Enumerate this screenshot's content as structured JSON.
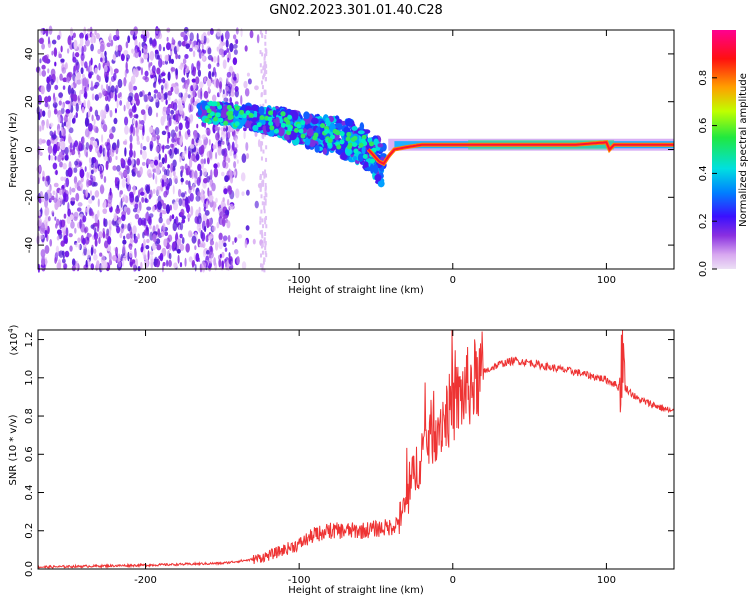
{
  "title": "GN02.2023.301.01.40.C28",
  "chart_data": [
    {
      "type": "heatmap",
      "name": "spectrogram",
      "xlabel": "Height of straight line (km)",
      "ylabel": "Frequency (Hz)",
      "xlim": [
        -270,
        144
      ],
      "ylim": [
        -50,
        50
      ],
      "xticks": [
        -200,
        -100,
        0,
        100
      ],
      "xtick_labels": [
        "-200",
        "-100",
        "0",
        "100"
      ],
      "yticks": [
        -40,
        -20,
        0,
        20,
        40
      ],
      "ytick_labels": [
        "-40",
        "-20",
        "0",
        "20",
        "40"
      ],
      "colorbar": {
        "label": "Normalized spectral amplitude",
        "range": [
          0,
          1
        ],
        "ticks": [
          0.0,
          0.2,
          0.4,
          0.6,
          0.8
        ],
        "tick_labels": [
          "0.0",
          "0.2",
          "0.4",
          "0.6",
          "0.8"
        ],
        "colormap": [
          "#e8ccf5",
          "#7a2fe0",
          "#3a10ff",
          "#0090ff",
          "#00e8d0",
          "#20e840",
          "#a0ff00",
          "#ffe000",
          "#ff8000",
          "#ff1010",
          "#ff0080"
        ]
      },
      "signal_track": {
        "x": [
          -165,
          -150,
          -130,
          -110,
          -90,
          -75,
          -62,
          -55,
          -48,
          -45,
          -42,
          -38,
          -30,
          -20,
          0,
          40,
          80,
          100,
          102,
          105,
          144
        ],
        "y": [
          16,
          15,
          13,
          11,
          7,
          5,
          3,
          0,
          -5,
          -6,
          -3,
          0,
          1,
          2,
          2,
          2,
          2,
          3,
          0,
          2,
          2
        ]
      },
      "grid": false
    },
    {
      "type": "line",
      "name": "snr",
      "xlabel": "Height of straight line (km)",
      "ylabel": "SNR (10 * v/v)",
      "yscale_label": "(x10",
      "yscale_exp": "4",
      "yscale_close": ")",
      "xlim": [
        -270,
        144
      ],
      "ylim": [
        0,
        1.25
      ],
      "xticks": [
        -200,
        -100,
        0,
        100
      ],
      "xtick_labels": [
        "-200",
        "-100",
        "0",
        "100"
      ],
      "yticks": [
        0,
        0.2,
        0.4,
        0.6,
        0.8,
        1.0,
        1.2
      ],
      "ytick_labels": [
        "0.0",
        "0.2",
        "0.4",
        "0.6",
        "0.8",
        "1.0",
        "1.2"
      ],
      "color": "#ee3333",
      "series": [
        {
          "x": [
            -270,
            -200,
            -150,
            -130,
            -120,
            -110,
            -100,
            -90,
            -80,
            -70,
            -60,
            -50,
            -40,
            -35,
            -30,
            -25,
            -20,
            -15,
            -10,
            -5,
            0,
            10,
            20,
            30,
            40,
            50,
            60,
            80,
            100,
            105,
            108,
            110,
            112,
            115,
            120,
            130,
            144
          ],
          "y": [
            0.01,
            0.02,
            0.03,
            0.05,
            0.07,
            0.1,
            0.13,
            0.18,
            0.2,
            0.2,
            0.2,
            0.21,
            0.22,
            0.25,
            0.35,
            0.5,
            0.62,
            0.7,
            0.75,
            0.8,
            0.85,
            0.95,
            1.03,
            1.07,
            1.09,
            1.08,
            1.06,
            1.03,
            0.99,
            0.97,
            0.95,
            1.1,
            0.95,
            0.93,
            0.89,
            0.86,
            0.82
          ]
        }
      ],
      "grid": false
    }
  ]
}
